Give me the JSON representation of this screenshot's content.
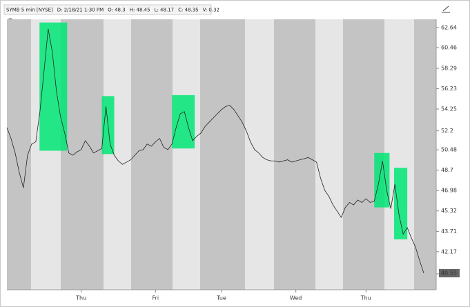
{
  "chart_data": {
    "type": "line",
    "header": [
      "SYMB 5 min [NYSE]",
      "D: 2/18/21 1:30 PM",
      "O: 48.3",
      "H: 48.45",
      "L: 48.17",
      "C: 48.35",
      "V: 0.32"
    ],
    "last_price_label": "40.55",
    "color": "#222222",
    "highlight_color": "#00e676",
    "log_scale": true,
    "values": [
      52.5,
      51.5,
      50.2,
      48.5,
      47.2,
      50.0,
      51.0,
      51.2,
      54.0,
      58.0,
      62.5,
      60.0,
      56.0,
      53.5,
      52.0,
      50.2,
      50.0,
      50.3,
      50.5,
      51.3,
      50.8,
      50.2,
      50.4,
      50.6,
      54.5,
      51.0,
      50.0,
      49.5,
      49.2,
      49.4,
      49.6,
      50.0,
      50.4,
      50.5,
      51.0,
      50.8,
      51.2,
      51.5,
      50.7,
      50.5,
      51.0,
      52.5,
      53.8,
      54.0,
      52.5,
      51.3,
      51.7,
      52.0,
      52.6,
      53.0,
      53.4,
      53.8,
      54.2,
      54.5,
      54.6,
      54.2,
      53.6,
      53.0,
      52.2,
      51.2,
      50.5,
      50.2,
      49.8,
      49.6,
      49.5,
      49.5,
      49.4,
      49.5,
      49.6,
      49.4,
      49.5,
      49.6,
      49.7,
      49.8,
      49.6,
      49.4,
      48.0,
      47.0,
      46.5,
      45.8,
      45.3,
      44.8,
      45.6,
      46.0,
      45.8,
      46.2,
      46.0,
      46.3,
      46.0,
      46.1,
      47.5,
      49.5,
      47.0,
      45.5,
      47.5,
      45.0,
      43.5,
      44.0,
      43.2,
      42.5,
      41.5,
      40.6
    ],
    "highlights": [
      {
        "x0": 7.9,
        "x1": 14.6,
        "ymin": 50.4,
        "ymax": 63.2
      },
      {
        "x0": 23,
        "x1": 26,
        "ymin": 50.1,
        "ymax": 55.5
      },
      {
        "x0": 40,
        "x1": 45.5,
        "ymin": 50.6,
        "ymax": 55.6
      },
      {
        "x0": 89,
        "x1": 92.7,
        "ymin": 45.6,
        "ymax": 50.2
      },
      {
        "x0": 93.8,
        "x1": 97,
        "ymin": 43.1,
        "ymax": 48.9
      }
    ],
    "xlim": [
      0,
      104
    ],
    "xticks": [
      {
        "value": 18,
        "label": "Thu"
      },
      {
        "value": 36,
        "label": "Fri"
      },
      {
        "value": 52,
        "label": "Tue"
      },
      {
        "value": 70,
        "label": "Wed"
      },
      {
        "value": 87,
        "label": "Thu"
      }
    ],
    "ylim": [
      39.43,
      63.56
    ],
    "yticks": [
      62.64,
      60.46,
      58.29,
      56.23,
      54.25,
      52.2,
      50.48,
      48.7,
      46.98,
      45.32,
      43.71,
      42.17,
      40.55
    ]
  }
}
